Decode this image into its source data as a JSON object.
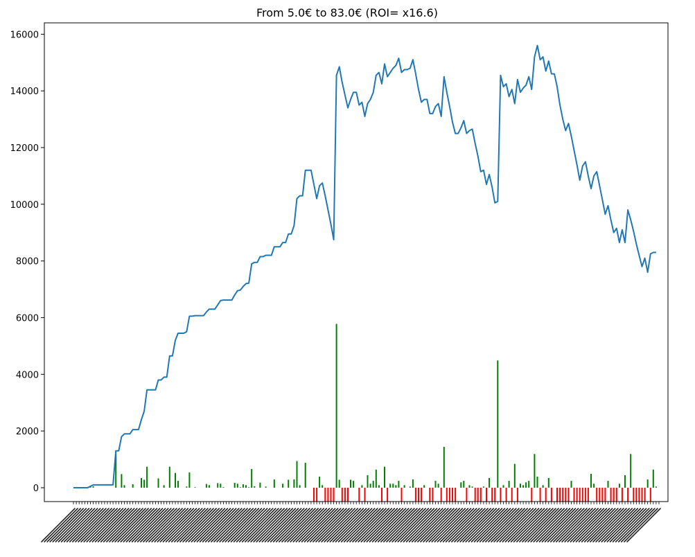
{
  "chart_data": {
    "type": "line",
    "title": "From 5.0€ to 83.0€ (ROI= x16.6)",
    "xlabel": "",
    "ylabel": "",
    "ylim": [
      -490,
      16400
    ],
    "y_ticks": [
      0,
      2000,
      4000,
      6000,
      8000,
      10000,
      12000,
      14000,
      16000
    ],
    "y_tick_labels": [
      "0",
      "2000",
      "4000",
      "6000",
      "8000",
      "10000",
      "12000",
      "14000",
      "16000"
    ],
    "x_tick_labels": "dense rotated date labels (illegible)",
    "grid": false,
    "legend": "none",
    "colors": {
      "line": "#1f77b4",
      "positive_bar": "#008000",
      "negative_bar": "#ff0000"
    },
    "series": [
      {
        "type": "line",
        "values": [
          0,
          0,
          0,
          0,
          0,
          0,
          50,
          100,
          100,
          100,
          100,
          100,
          100,
          100,
          100,
          1300,
          1300,
          1800,
          1900,
          1900,
          1900,
          2050,
          2050,
          2050,
          2400,
          2700,
          3450,
          3450,
          3450,
          3450,
          3800,
          3800,
          3900,
          3900,
          4650,
          4650,
          5200,
          5450,
          5450,
          5450,
          5500,
          6050,
          6050,
          6070,
          6070,
          6070,
          6070,
          6200,
          6300,
          6300,
          6300,
          6450,
          6600,
          6620,
          6620,
          6620,
          6620,
          6800,
          6950,
          6970,
          7100,
          7200,
          7220,
          7900,
          7950,
          7950,
          8150,
          8150,
          8200,
          8200,
          8200,
          8500,
          8500,
          8500,
          8650,
          8650,
          8950,
          8950,
          9250,
          10200,
          10300,
          10300,
          11200,
          11200,
          11200,
          10700,
          10200,
          10650,
          10750,
          10300,
          9800,
          9300,
          8750,
          14550,
          14850,
          14300,
          13850,
          13400,
          13700,
          13950,
          13950,
          13500,
          13600,
          13100,
          13550,
          13700,
          13950,
          14550,
          14650,
          14250,
          14950,
          14500,
          14650,
          14800,
          14900,
          15150,
          14650,
          14750,
          14750,
          14800,
          15100,
          14600,
          14050,
          13600,
          13700,
          13700,
          13200,
          13200,
          13450,
          13550,
          13100,
          14500,
          13950,
          13450,
          12900,
          12500,
          12500,
          12700,
          12950,
          12500,
          12600,
          12650,
          12150,
          11700,
          11150,
          11200,
          10700,
          11050,
          10600,
          10050,
          10100,
          14550,
          14150,
          14250,
          13800,
          14050,
          13550,
          14400,
          13950,
          14100,
          14200,
          14500,
          14050,
          15200,
          15600,
          15100,
          15200,
          14700,
          15050,
          14600,
          14600,
          14150,
          13500,
          13000,
          12600,
          12850,
          12400,
          11900,
          11400,
          10850,
          11350,
          11500,
          11000,
          10550,
          11000,
          11150,
          10650,
          10150,
          9650,
          9950,
          9450,
          9000,
          9150,
          8650,
          9100,
          8650,
          9800,
          9450,
          9050,
          8600,
          8200,
          7800,
          8100,
          7600,
          8250,
          8300,
          8300
        ]
      },
      {
        "type": "bar",
        "name": "",
        "values": [
          0,
          0,
          0,
          0,
          0,
          0,
          50,
          50,
          0,
          0,
          0,
          0,
          0,
          0,
          0,
          1300,
          0,
          480,
          90,
          0,
          0,
          120,
          0,
          0,
          340,
          280,
          740,
          0,
          0,
          0,
          330,
          0,
          90,
          0,
          740,
          0,
          520,
          240,
          0,
          0,
          40,
          540,
          0,
          20,
          0,
          0,
          0,
          130,
          90,
          0,
          0,
          160,
          140,
          20,
          0,
          0,
          0,
          170,
          140,
          20,
          120,
          90,
          20,
          660,
          50,
          0,
          180,
          0,
          40,
          0,
          0,
          290,
          0,
          0,
          140,
          0,
          280,
          0,
          290,
          940,
          90,
          0,
          880,
          0,
          0,
          -480,
          -480,
          390,
          90,
          -480,
          -480,
          -480,
          -480,
          5780,
          280,
          -480,
          -480,
          -480,
          280,
          240,
          0,
          -480,
          90,
          -480,
          440,
          140,
          240,
          640,
          90,
          -480,
          740,
          -480,
          140,
          140,
          90,
          240,
          -480,
          90,
          0,
          40,
          290,
          -480,
          -480,
          -480,
          90,
          0,
          -480,
          -480,
          240,
          140,
          -480,
          1440,
          -480,
          -480,
          -480,
          -480,
          0,
          190,
          240,
          -480,
          90,
          40,
          -480,
          -480,
          -480,
          40,
          -480,
          340,
          -480,
          -480,
          4490,
          -480,
          90,
          -480,
          240,
          -480,
          840,
          -480,
          140,
          90,
          190,
          240,
          -480,
          1190,
          390,
          -480,
          90,
          -480,
          340,
          -480,
          0,
          -480,
          -480,
          -480,
          -480,
          -480,
          240,
          -480,
          -480,
          -480,
          -480,
          -480,
          -480,
          490,
          140,
          -480,
          -480,
          -480,
          -480,
          240,
          -480,
          -480,
          -480,
          140,
          -480,
          440,
          -480,
          1190,
          -480,
          -480,
          -480,
          -480,
          -480,
          290,
          -480,
          640,
          40,
          0
        ]
      }
    ]
  }
}
